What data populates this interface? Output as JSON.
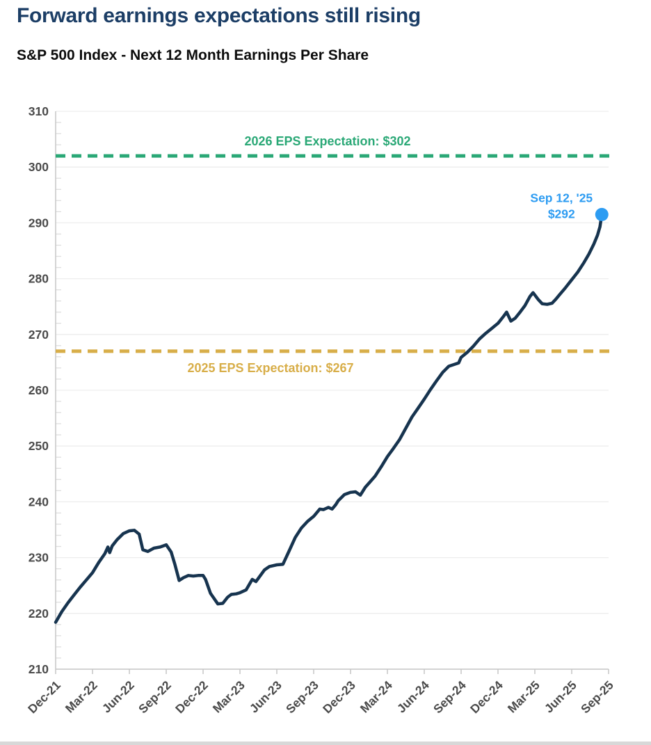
{
  "header": {
    "title": "Forward earnings expectations still rising",
    "subtitle": "S&P 500 Index - Next 12 Month Earnings Per Share"
  },
  "chart_data": {
    "type": "line",
    "title": "Forward earnings expectations still rising",
    "subtitle": "S&P 500 Index - Next 12 Month Earnings Per Share",
    "ylabel": "",
    "xlabel": "",
    "ylim": [
      210,
      310
    ],
    "y_ticks": [
      210,
      220,
      230,
      240,
      250,
      260,
      270,
      280,
      290,
      300,
      310
    ],
    "y_minor_tick_step": 2,
    "x_tick_labels": [
      "Dec-21",
      "Mar-22",
      "Jun-22",
      "Sep-22",
      "Dec-22",
      "Mar-23",
      "Jun-23",
      "Sep-23",
      "Dec-23",
      "Mar-24",
      "Jun-24",
      "Sep-24",
      "Dec-24",
      "Mar-25",
      "Jun-25",
      "Sep-25"
    ],
    "grid": "horizontal",
    "legend_position": "none",
    "colors": {
      "series": "#17344f",
      "ref_2026": "#2aa876",
      "ref_2025": "#d8ae49",
      "annotation": "#2d9cf2",
      "axis_text": "#4a4a4a",
      "gridline": "#ededed",
      "axis_line": "#c6c6c6",
      "title": "#1c3e66"
    },
    "series": [
      {
        "name": "S&P 500 Next 12 Month EPS",
        "color": "#17344f",
        "x_unit": "months since Dec-21",
        "points": [
          [
            0,
            218.4
          ],
          [
            0.5,
            220.3
          ],
          [
            1,
            221.9
          ],
          [
            1.5,
            223.3
          ],
          [
            2,
            224.7
          ],
          [
            2.5,
            226
          ],
          [
            3,
            227.3
          ],
          [
            3.5,
            229.1
          ],
          [
            4,
            230.7
          ],
          [
            4.25,
            231.9
          ],
          [
            4.4,
            230.9
          ],
          [
            4.6,
            232.1
          ],
          [
            5,
            233.2
          ],
          [
            5.5,
            234.3
          ],
          [
            6,
            234.8
          ],
          [
            6.4,
            234.9
          ],
          [
            6.8,
            234.2
          ],
          [
            7.1,
            231.4
          ],
          [
            7.5,
            231.1
          ],
          [
            8,
            231.7
          ],
          [
            8.5,
            231.9
          ],
          [
            9,
            232.3
          ],
          [
            9.4,
            231
          ],
          [
            9.7,
            228.8
          ],
          [
            10.05,
            225.9
          ],
          [
            10.4,
            226.4
          ],
          [
            10.8,
            226.8
          ],
          [
            11.2,
            226.7
          ],
          [
            11.6,
            226.8
          ],
          [
            12,
            226.8
          ],
          [
            12.2,
            226.1
          ],
          [
            12.6,
            223.6
          ],
          [
            13.2,
            221.7
          ],
          [
            13.6,
            221.8
          ],
          [
            14,
            222.9
          ],
          [
            14.3,
            223.4
          ],
          [
            14.7,
            223.5
          ],
          [
            15,
            223.7
          ],
          [
            15.5,
            224.2
          ],
          [
            16,
            226.1
          ],
          [
            16.3,
            225.7
          ],
          [
            16.7,
            226.9
          ],
          [
            17,
            227.8
          ],
          [
            17.4,
            228.4
          ],
          [
            18,
            228.7
          ],
          [
            18.5,
            228.8
          ],
          [
            19,
            231.2
          ],
          [
            19.5,
            233.6
          ],
          [
            20,
            235.3
          ],
          [
            20.5,
            236.5
          ],
          [
            21,
            237.4
          ],
          [
            21.5,
            238.7
          ],
          [
            21.8,
            238.6
          ],
          [
            22.2,
            239
          ],
          [
            22.5,
            238.7
          ],
          [
            22.8,
            239.5
          ],
          [
            23,
            240.2
          ],
          [
            23.5,
            241.3
          ],
          [
            24,
            241.7
          ],
          [
            24.4,
            241.8
          ],
          [
            24.8,
            241.2
          ],
          [
            25.2,
            242.6
          ],
          [
            25.6,
            243.6
          ],
          [
            26,
            244.6
          ],
          [
            26.5,
            246.3
          ],
          [
            27,
            248.1
          ],
          [
            27.5,
            249.6
          ],
          [
            28,
            251.2
          ],
          [
            28.5,
            253.2
          ],
          [
            29,
            255.2
          ],
          [
            29.5,
            256.8
          ],
          [
            30,
            258.4
          ],
          [
            30.5,
            260.1
          ],
          [
            31,
            261.7
          ],
          [
            31.5,
            263.2
          ],
          [
            32,
            264.3
          ],
          [
            32.4,
            264.6
          ],
          [
            32.8,
            264.9
          ],
          [
            33,
            265.9
          ],
          [
            33.5,
            266.8
          ],
          [
            34,
            267.9
          ],
          [
            34.5,
            269.2
          ],
          [
            35,
            270.2
          ],
          [
            35.5,
            271.1
          ],
          [
            36,
            272
          ],
          [
            36.4,
            273.1
          ],
          [
            36.7,
            274
          ],
          [
            37.05,
            272.4
          ],
          [
            37.4,
            272.9
          ],
          [
            37.8,
            274
          ],
          [
            38.2,
            275.2
          ],
          [
            38.6,
            276.8
          ],
          [
            38.85,
            277.5
          ],
          [
            39.3,
            276.2
          ],
          [
            39.6,
            275.5
          ],
          [
            40,
            275.4
          ],
          [
            40.4,
            275.6
          ],
          [
            40.7,
            276.3
          ],
          [
            41,
            277.1
          ],
          [
            41.5,
            278.4
          ],
          [
            42,
            279.8
          ],
          [
            42.5,
            281.2
          ],
          [
            43,
            282.9
          ],
          [
            43.4,
            284.4
          ],
          [
            43.8,
            286.2
          ],
          [
            44.1,
            287.8
          ],
          [
            44.3,
            289.3
          ],
          [
            44.45,
            291.5
          ]
        ]
      }
    ],
    "reference_lines": [
      {
        "id": "ref_2026",
        "label": "2026 EPS Expectation: $302",
        "value": 302,
        "color": "#2aa876",
        "style": "dashed",
        "label_position": "above"
      },
      {
        "id": "ref_2025",
        "label": "2025 EPS Expectation: $267",
        "value": 267,
        "color": "#d8ae49",
        "style": "dashed",
        "label_position": "below"
      }
    ],
    "annotation": {
      "lines": [
        "Sep 12, '25",
        "$292"
      ],
      "color": "#2d9cf2",
      "point": [
        44.45,
        291.5
      ],
      "marker": "dot"
    }
  }
}
